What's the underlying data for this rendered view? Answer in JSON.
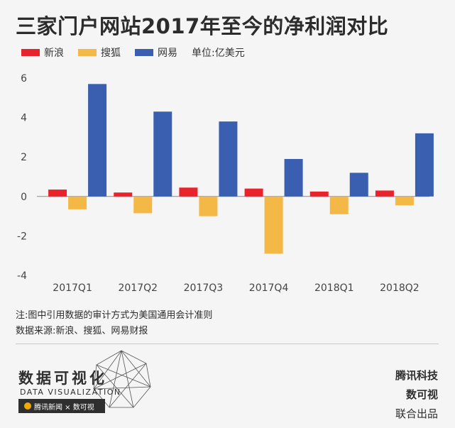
{
  "title": "三家门户网站2017年至今的净利润对比",
  "legend": {
    "items": [
      {
        "name": "新浪",
        "color": "#e8232b"
      },
      {
        "name": "搜狐",
        "color": "#f4b846"
      },
      {
        "name": "网易",
        "color": "#3a5fb0"
      }
    ],
    "unit": "单位:亿美元"
  },
  "chart_data": {
    "type": "bar",
    "categories": [
      "2017Q1",
      "2017Q2",
      "2017Q3",
      "2017Q4",
      "2018Q1",
      "2018Q2"
    ],
    "series": [
      {
        "name": "新浪",
        "color": "#e8232b",
        "values": [
          0.35,
          0.2,
          0.45,
          0.4,
          0.25,
          0.3
        ]
      },
      {
        "name": "搜狐",
        "color": "#f4b846",
        "values": [
          -0.65,
          -0.85,
          -1.0,
          -2.9,
          -0.9,
          -0.45
        ]
      },
      {
        "name": "网易",
        "color": "#3a5fb0",
        "values": [
          5.7,
          4.3,
          3.8,
          1.9,
          1.2,
          3.2
        ]
      }
    ],
    "ylim": [
      -4,
      6
    ],
    "yticks": [
      -4,
      -2,
      0,
      2,
      4,
      6
    ],
    "grid": false,
    "legend_position": "top-left"
  },
  "notes": {
    "line1": "注:图中引用数据的审计方式为美国通用会计准则",
    "line2": "数据来源:新浪、搜狐、网易财报"
  },
  "footer_logo": {
    "cn": "数据可视化",
    "en": "DATA VISUALIZATION",
    "bar": "腾讯新闻 × 数可视"
  },
  "credits": {
    "line1": "腾讯科技",
    "line2": "数可视",
    "line3": "联合出品"
  }
}
